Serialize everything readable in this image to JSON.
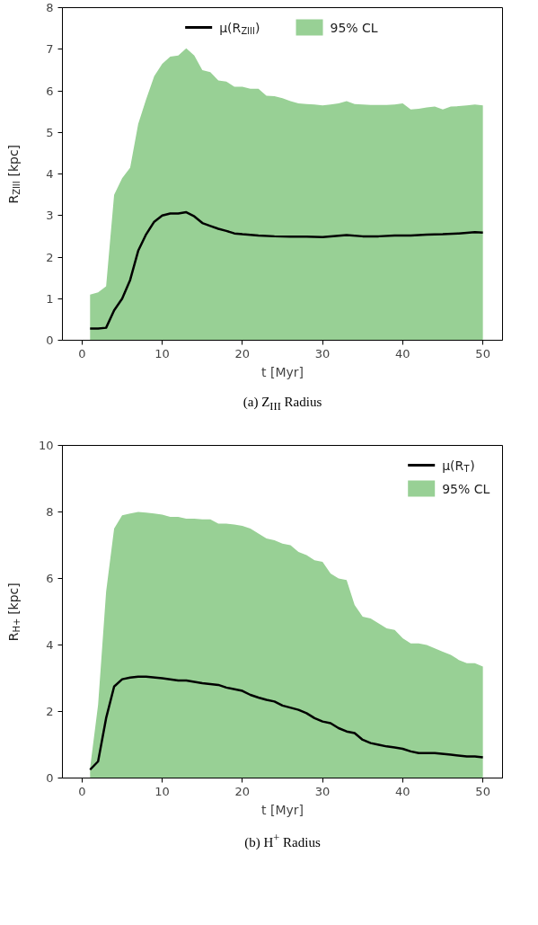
{
  "chart_data": [
    {
      "type": "line",
      "xlabel": "t [Myr]",
      "ylabel": "R$_{ZIII}$ [kpc]",
      "xlim": [
        -2.45,
        52.45
      ],
      "ylim": [
        0,
        8
      ],
      "xticks": [
        0,
        10,
        20,
        30,
        40,
        50
      ],
      "yticks": [
        0,
        1,
        2,
        3,
        4,
        5,
        6,
        7,
        8
      ],
      "grid": false,
      "legend": "top",
      "annotations": [
        "(a) Z$_{III}$ Radius"
      ],
      "series": [
        {
          "name": "μ(R$_{ZIII}$)",
          "color": "#000000",
          "x": [
            1,
            2,
            3,
            4,
            5,
            6,
            7,
            8,
            9,
            10,
            11,
            12,
            13,
            14,
            15,
            16,
            17,
            18,
            19,
            20,
            22,
            24,
            26,
            28,
            30,
            33,
            35,
            37,
            39,
            41,
            43,
            45,
            47,
            49,
            50
          ],
          "values": [
            0.28,
            0.28,
            0.3,
            0.72,
            1.0,
            1.45,
            2.15,
            2.55,
            2.85,
            3.0,
            3.05,
            3.05,
            3.08,
            2.98,
            2.82,
            2.75,
            2.68,
            2.63,
            2.57,
            2.55,
            2.52,
            2.5,
            2.49,
            2.49,
            2.48,
            2.53,
            2.5,
            2.5,
            2.52,
            2.52,
            2.54,
            2.55,
            2.57,
            2.6,
            2.59
          ]
        },
        {
          "name": "95% CL",
          "color": "#98d095",
          "type": "area",
          "x": [
            1,
            2,
            3,
            4,
            5,
            6,
            7,
            8,
            9,
            10,
            11,
            12,
            13,
            14,
            15,
            16,
            17,
            18,
            19,
            20,
            21,
            22,
            23,
            24,
            25,
            26,
            27,
            28,
            29,
            30,
            31,
            32,
            33,
            34,
            35,
            36,
            37,
            38,
            39,
            40,
            41,
            42,
            43,
            44,
            45,
            46,
            47,
            48,
            49,
            50
          ],
          "values": [
            1.1,
            1.15,
            1.3,
            3.5,
            3.9,
            4.15,
            5.2,
            5.8,
            6.35,
            6.65,
            6.82,
            6.85,
            7.02,
            6.85,
            6.5,
            6.45,
            6.25,
            6.22,
            6.1,
            6.1,
            6.05,
            6.05,
            5.88,
            5.87,
            5.82,
            5.75,
            5.7,
            5.68,
            5.67,
            5.65,
            5.67,
            5.7,
            5.75,
            5.68,
            5.67,
            5.66,
            5.66,
            5.66,
            5.67,
            5.7,
            5.55,
            5.57,
            5.6,
            5.62,
            5.55,
            5.62,
            5.63,
            5.65,
            5.67,
            5.65
          ]
        }
      ]
    },
    {
      "type": "line",
      "xlabel": "t [Myr]",
      "ylabel": "R$_{H+}$ [kpc]",
      "xlim": [
        -2.45,
        52.45
      ],
      "ylim": [
        0,
        10
      ],
      "xticks": [
        0,
        10,
        20,
        30,
        40,
        50
      ],
      "yticks": [
        0,
        2,
        4,
        6,
        8,
        10
      ],
      "grid": false,
      "legend": "top right",
      "annotations": [
        "(b) H$^{+}$ Radius"
      ],
      "series": [
        {
          "name": "μ(R$_{T}$)",
          "color": "#000000",
          "x": [
            1,
            2,
            3,
            4,
            5,
            6,
            7,
            8,
            10,
            12,
            13,
            15,
            17,
            18,
            20,
            21,
            22,
            23,
            24,
            25,
            27,
            28,
            29,
            30,
            31,
            32,
            33,
            34,
            35,
            36,
            37,
            38,
            39,
            40,
            41,
            42,
            44,
            46,
            48,
            49,
            50
          ],
          "values": [
            0.25,
            0.5,
            1.8,
            2.75,
            2.97,
            3.02,
            3.05,
            3.05,
            3.0,
            2.93,
            2.93,
            2.85,
            2.8,
            2.72,
            2.62,
            2.5,
            2.42,
            2.35,
            2.3,
            2.18,
            2.05,
            1.95,
            1.8,
            1.7,
            1.65,
            1.5,
            1.4,
            1.35,
            1.15,
            1.05,
            1.0,
            0.95,
            0.92,
            0.88,
            0.8,
            0.75,
            0.75,
            0.7,
            0.65,
            0.65,
            0.62
          ]
        },
        {
          "name": "95% CL",
          "color": "#98d095",
          "type": "area",
          "x": [
            1,
            2,
            3,
            4,
            5,
            6,
            7,
            8,
            9,
            10,
            11,
            12,
            13,
            14,
            15,
            16,
            17,
            18,
            19,
            20,
            21,
            22,
            23,
            24,
            25,
            26,
            27,
            28,
            29,
            30,
            31,
            32,
            33,
            34,
            35,
            36,
            37,
            38,
            39,
            40,
            41,
            42,
            43,
            44,
            45,
            46,
            47,
            48,
            49,
            50
          ],
          "values": [
            0.3,
            2.2,
            5.6,
            7.5,
            7.9,
            7.95,
            8.0,
            7.98,
            7.95,
            7.92,
            7.85,
            7.85,
            7.8,
            7.8,
            7.78,
            7.78,
            7.65,
            7.65,
            7.62,
            7.58,
            7.5,
            7.35,
            7.2,
            7.15,
            7.05,
            7.0,
            6.8,
            6.7,
            6.55,
            6.5,
            6.15,
            6.0,
            5.95,
            5.2,
            4.85,
            4.8,
            4.65,
            4.5,
            4.45,
            4.2,
            4.05,
            4.05,
            4.0,
            3.9,
            3.8,
            3.7,
            3.55,
            3.45,
            3.45,
            3.35
          ]
        }
      ]
    }
  ]
}
